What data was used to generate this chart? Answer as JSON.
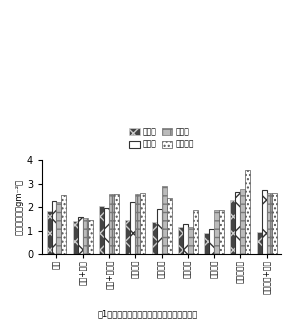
{
  "categories": [
    "水田",
    "水田+娩肥",
    "水田+稲わら",
    "転畑２年",
    "転畑２年",
    "転畑６年",
    "転畑８年",
    "転畑１６年",
    "転畑１６+堆肥"
  ],
  "series": {
    "無処理": [
      1.83,
      1.42,
      2.08,
      1.48,
      1.37,
      1.18,
      0.93,
      2.3,
      0.95
    ],
    "わら混": [
      2.28,
      1.6,
      1.98,
      2.22,
      1.93,
      1.3,
      1.07,
      2.65,
      2.73
    ],
    "代かき": [
      2.25,
      1.57,
      2.58,
      2.58,
      2.92,
      1.17,
      1.87,
      2.78,
      2.6
    ],
    "わら表面": [
      2.52,
      1.46,
      2.55,
      2.6,
      2.4,
      1.88,
      1.88,
      3.6,
      2.6
    ]
  },
  "ylabel": "窒素富化量（gm⁻²）",
  "ylim": [
    0,
    4
  ],
  "yticks": [
    0,
    1,
    2,
    3,
    4
  ],
  "figure_caption": "図1　転換畑における土壌処理と窒素富化量",
  "legend_labels": [
    "無処理",
    "わら混",
    "代かき",
    "わら表面"
  ],
  "bar_width": 0.19,
  "background_color": "#ffffff"
}
